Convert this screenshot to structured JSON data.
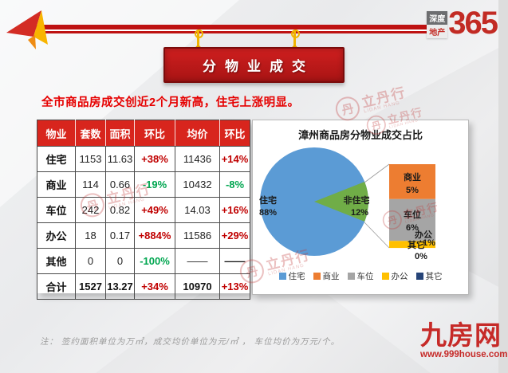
{
  "brand": {
    "name_top": "深度",
    "name_bottom": "地产",
    "number": "365"
  },
  "banner": {
    "title": "分物业成交"
  },
  "subtitle": "全市商品房成交创近2个月新高，住宅上涨明显。",
  "table": {
    "headers": [
      "物业",
      "套数",
      "面积",
      "环比",
      "均价",
      "环比"
    ],
    "rows": [
      {
        "name": "住宅",
        "units": "1153",
        "area": "11.63",
        "mom1": "+38%",
        "mom1_dir": "up",
        "price": "11436",
        "mom2": "+14%",
        "mom2_dir": "up",
        "is_total": false
      },
      {
        "name": "商业",
        "units": "114",
        "area": "0.66",
        "mom1": "-19%",
        "mom1_dir": "down",
        "price": "10432",
        "mom2": "-8%",
        "mom2_dir": "down",
        "is_total": false
      },
      {
        "name": "车位",
        "units": "242",
        "area": "0.82",
        "mom1": "+49%",
        "mom1_dir": "up",
        "price": "14.03",
        "mom2": "+16%",
        "mom2_dir": "up",
        "is_total": false
      },
      {
        "name": "办公",
        "units": "18",
        "area": "0.17",
        "mom1": "+884%",
        "mom1_dir": "up",
        "price": "11586",
        "mom2": "+29%",
        "mom2_dir": "up",
        "is_total": false
      },
      {
        "name": "其他",
        "units": "0",
        "area": "0",
        "mom1": "-100%",
        "mom1_dir": "down",
        "price": "——",
        "mom2": "——",
        "mom2_dir": "dash",
        "is_total": false
      },
      {
        "name": "合计",
        "units": "1527",
        "area": "13.27",
        "mom1": "+34%",
        "mom1_dir": "up",
        "price": "10970",
        "mom2": "+13%",
        "mom2_dir": "up",
        "is_total": true
      }
    ]
  },
  "chart_data": {
    "type": "pie",
    "title": "漳州商品房分物业成交占比",
    "slices": [
      {
        "label": "住宅",
        "value": 88,
        "color": "#5B9BD5"
      },
      {
        "label": "非住宅",
        "value": 12,
        "color": "#70AD47"
      }
    ],
    "breakdown_bar": [
      {
        "label": "商业",
        "value": 5,
        "color": "#ED7D31"
      },
      {
        "label": "车位",
        "value": 6,
        "color": "#A5A5A5"
      },
      {
        "label": "办公",
        "value": 1,
        "color": "#FFC000"
      },
      {
        "label": "其它",
        "value": 0,
        "color": "#264478"
      }
    ],
    "legend": [
      {
        "label": "住宅",
        "color": "#5B9BD5"
      },
      {
        "label": "商业",
        "color": "#ED7D31"
      },
      {
        "label": "车位",
        "color": "#A5A5A5"
      },
      {
        "label": "办公",
        "color": "#FFC000"
      },
      {
        "label": "其它",
        "color": "#264478"
      }
    ],
    "legend_position": "bottom"
  },
  "watermark": {
    "emblem": "丹",
    "text": "立丹行",
    "subtext": "LIDAN HANG"
  },
  "footer": {
    "note": "注： 签约面积单位为万㎡，成交均价单位为元/㎡ ， 车位均价为万元/个。",
    "site_name": "九房网",
    "site_url": "www.999house.com"
  },
  "colors": {
    "accent_red": "#C41A1A",
    "header_red": "#D8251D",
    "positive": "#C00000",
    "negative": "#00A650"
  }
}
